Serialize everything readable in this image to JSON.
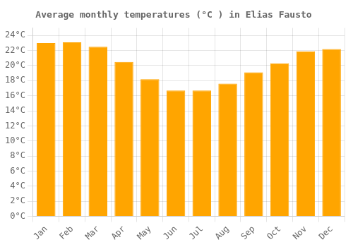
{
  "chart_data": {
    "type": "bar",
    "title": "Average monthly temperatures (°C ) in Elias Fausto",
    "categories": [
      "Jan",
      "Feb",
      "Mar",
      "Apr",
      "May",
      "Jun",
      "Jul",
      "Aug",
      "Sep",
      "Oct",
      "Nov",
      "Dec"
    ],
    "values": [
      23.0,
      23.1,
      22.5,
      20.5,
      18.2,
      16.7,
      16.7,
      17.6,
      19.1,
      20.3,
      21.9,
      22.2
    ],
    "color": "#FFA500",
    "ylim": [
      0,
      25
    ],
    "yticks": [
      {
        "value": 0,
        "label": "0°C"
      },
      {
        "value": 2,
        "label": "2°C"
      },
      {
        "value": 4,
        "label": "4°C"
      },
      {
        "value": 6,
        "label": "6°C"
      },
      {
        "value": 8,
        "label": "8°C"
      },
      {
        "value": 10,
        "label": "10°C"
      },
      {
        "value": 12,
        "label": "12°C"
      },
      {
        "value": 14,
        "label": "14°C"
      },
      {
        "value": 16,
        "label": "16°C"
      },
      {
        "value": 18,
        "label": "18°C"
      },
      {
        "value": 20,
        "label": "20°C"
      },
      {
        "value": 22,
        "label": "22°C"
      },
      {
        "value": 24,
        "label": "24°C"
      }
    ],
    "grid": true
  }
}
